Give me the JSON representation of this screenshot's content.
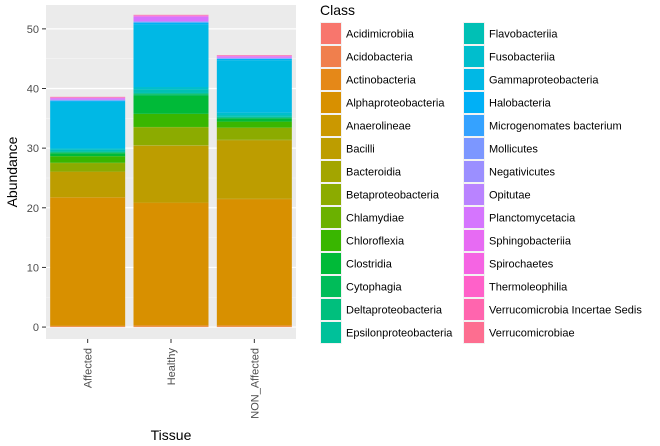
{
  "chart_data": {
    "type": "bar",
    "stacked": true,
    "xlabel": "Tissue",
    "ylabel": "Abundance",
    "categories": [
      "Affected",
      "Healthy",
      "NON_Affected"
    ],
    "ylim": [
      -2,
      54
    ],
    "yticks": [
      0,
      10,
      20,
      30,
      40,
      50
    ],
    "grid": true,
    "legend": {
      "title": "Class",
      "placement": "right",
      "columns": 2
    },
    "series": [
      {
        "name": "Acidimicrobiia",
        "color": "#F8766D",
        "values": [
          0.05,
          0.05,
          0.05
        ]
      },
      {
        "name": "Acidobacteria",
        "color": "#F07F4D",
        "values": [
          0.05,
          0.05,
          0.05
        ]
      },
      {
        "name": "Actinobacteria",
        "color": "#E58818",
        "values": [
          0.1,
          0.2,
          0.2
        ]
      },
      {
        "name": "Alphaproteobacteria",
        "color": "#D89000",
        "values": [
          21.5,
          20.5,
          21.1
        ]
      },
      {
        "name": "Anaerolineae",
        "color": "#CB9800",
        "values": [
          0.1,
          0.1,
          0.1
        ]
      },
      {
        "name": "Bacilli",
        "color": "#BD9D00",
        "values": [
          4.2,
          9.5,
          9.8
        ]
      },
      {
        "name": "Bacteroidia",
        "color": "#A3A500",
        "values": [
          0.1,
          0.1,
          0.1
        ]
      },
      {
        "name": "Betaproteobacteria",
        "color": "#8CAB00",
        "values": [
          1.4,
          3.0,
          2.0
        ]
      },
      {
        "name": "Chlamydiae",
        "color": "#6BB100",
        "values": [
          0.05,
          0.05,
          0.05
        ]
      },
      {
        "name": "Chloroflexia",
        "color": "#39B600",
        "values": [
          1.1,
          2.2,
          1.0
        ]
      },
      {
        "name": "Clostridia",
        "color": "#00BA38",
        "values": [
          0.5,
          3.0,
          0.5
        ]
      },
      {
        "name": "Cytophagia",
        "color": "#00BC59",
        "values": [
          0.1,
          0.3,
          0.1
        ]
      },
      {
        "name": "Deltaproteobacteria",
        "color": "#00BF7D",
        "values": [
          0.1,
          0.1,
          0.1
        ]
      },
      {
        "name": "Epsilonproteobacteria",
        "color": "#00C19A",
        "values": [
          0.1,
          0.1,
          0.1
        ]
      },
      {
        "name": "Flavobacteriia",
        "color": "#00C0B5",
        "values": [
          0.3,
          0.6,
          0.3
        ]
      },
      {
        "name": "Fusobacteriia",
        "color": "#00BECD",
        "values": [
          0.2,
          0.4,
          0.4
        ]
      },
      {
        "name": "Gammaproteobacteria",
        "color": "#00B8E5",
        "values": [
          7.8,
          10.5,
          8.8
        ]
      },
      {
        "name": "Halobacteria",
        "color": "#00B0F6",
        "values": [
          0.2,
          0.3,
          0.2
        ]
      },
      {
        "name": "Microgenomates bacterium",
        "color": "#35A2FF",
        "values": [
          0.05,
          0.05,
          0.05
        ]
      },
      {
        "name": "Mollicutes",
        "color": "#7C97FF",
        "values": [
          0.05,
          0.05,
          0.05
        ]
      },
      {
        "name": "Negativicutes",
        "color": "#9B8FFF",
        "values": [
          0.05,
          0.1,
          0.05
        ]
      },
      {
        "name": "Opitutae",
        "color": "#B983FF",
        "values": [
          0.05,
          0.05,
          0.05
        ]
      },
      {
        "name": "Planctomycetacia",
        "color": "#D575FE",
        "values": [
          0.2,
          0.7,
          0.2
        ]
      },
      {
        "name": "Sphingobacteriia",
        "color": "#E76BF3",
        "values": [
          0.05,
          0.1,
          0.05
        ]
      },
      {
        "name": "Spirochaetes",
        "color": "#F564E3",
        "values": [
          0.05,
          0.1,
          0.05
        ]
      },
      {
        "name": "Thermoleophilia",
        "color": "#FF61C9",
        "values": [
          0.05,
          0.05,
          0.05
        ]
      },
      {
        "name": "Verrucomicrobia Incertae Sedis",
        "color": "#FF65AE",
        "values": [
          0.05,
          0.05,
          0.05
        ]
      },
      {
        "name": "Verrucomicrobiae",
        "color": "#FD6E90",
        "values": [
          0.05,
          0.05,
          0.05
        ]
      }
    ]
  }
}
